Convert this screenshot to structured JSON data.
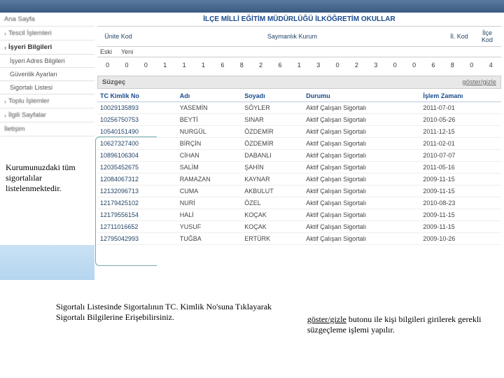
{
  "page_title": "İLÇE MİLLİ EĞİTİM MÜDÜRLÜĞÜ İLKÖĞRETİM OKULLAR",
  "sidebar": {
    "items": [
      {
        "label": "Ana Sayfa"
      },
      {
        "label": "Tescil İşlemleri"
      },
      {
        "label": "İşyeri Bilgileri"
      },
      {
        "label": "İşyeri Adres Bilgileri"
      },
      {
        "label": "Güvenlik Ayarları"
      },
      {
        "label": "Sigortalı Listesi"
      },
      {
        "label": "Toplu İşlemler"
      },
      {
        "label": "İlgili Sayfalar"
      },
      {
        "label": "İletişim"
      }
    ]
  },
  "header_cols": {
    "unite_kod": "Ünite Kod",
    "saymanlik": "Saymanlık Kurum",
    "il_kod": "İl. Kod",
    "ilce_kod": "İlçe Kod",
    "eski": "Eski",
    "yeni": "Yeni"
  },
  "num_row": [
    "0",
    "0",
    "0",
    "1",
    "1",
    "1",
    "6",
    "8",
    "2",
    "6",
    "1",
    "3",
    "0",
    "2",
    "3",
    "0",
    "0",
    "6",
    "8",
    "0",
    "4"
  ],
  "filter": {
    "label": "Süzgeç",
    "toggle": "göster/gizle"
  },
  "list": {
    "cols": {
      "tc": "TC Kimlik No",
      "ad": "Adı",
      "soyad": "Soyadı",
      "durum": "Durumu",
      "zaman": "İşlem Zamanı"
    },
    "rows": [
      {
        "tc": "10029135893",
        "ad": "YASEMİN",
        "soyad": "SÖYLER",
        "durum": "Aktif Çalışan Sigortalı",
        "zaman": "2011-07-01"
      },
      {
        "tc": "10256750753",
        "ad": "BEYTİ",
        "soyad": "SINAR",
        "durum": "Aktif Çalışan Sigortalı",
        "zaman": "2010-05-26"
      },
      {
        "tc": "10540151490",
        "ad": "NURGÜL",
        "soyad": "ÖZDEMİR",
        "durum": "Aktif Çalışan Sigortalı",
        "zaman": "2011-12-15"
      },
      {
        "tc": "10627327400",
        "ad": "BİRÇİN",
        "soyad": "ÖZDEMİR",
        "durum": "Aktif Çalışan Sigortalı",
        "zaman": "2011-02-01"
      },
      {
        "tc": "10896106304",
        "ad": "CİHAN",
        "soyad": "DABANLI",
        "durum": "Aktif Çalışan Sigortalı",
        "zaman": "2010-07-07"
      },
      {
        "tc": "12035452675",
        "ad": "SALİM",
        "soyad": "ŞAHİN",
        "durum": "Aktif Çalışan Sigortalı",
        "zaman": "2011-05-16"
      },
      {
        "tc": "12084067312",
        "ad": "RAMAZAN",
        "soyad": "KAYNAR",
        "durum": "Aktif Çalışan Sigortalı",
        "zaman": "2009-11-15"
      },
      {
        "tc": "12132096713",
        "ad": "CUMA",
        "soyad": "AKBULUT",
        "durum": "Aktif Çalışan Sigortalı",
        "zaman": "2009-11-15"
      },
      {
        "tc": "12179425102",
        "ad": "NURİ",
        "soyad": "ÖZEL",
        "durum": "Aktif Çalışan Sigortalı",
        "zaman": "2010-08-23"
      },
      {
        "tc": "12179556154",
        "ad": "HALİ",
        "soyad": "KOÇAK",
        "durum": "Aktif Çalışan Sigortalı",
        "zaman": "2009-11-15"
      },
      {
        "tc": "12711016652",
        "ad": "YUSUF",
        "soyad": "KOÇAK",
        "durum": "Aktif Çalışan Sigortalı",
        "zaman": "2009-11-15"
      },
      {
        "tc": "12795042993",
        "ad": "TUĞBA",
        "soyad": "ERTÜRK",
        "durum": "Aktif Çalışan Sigortalı",
        "zaman": "2009-10-26"
      }
    ]
  },
  "callouts": {
    "c1": "Kurumunuzdaki tüm sigortalılar listelenmektedir.",
    "c2": "Sigortalı Listesinde Sigortalının TC. Kimlik No'suna Tıklayarak Sigortalı Bilgilerine Erişebilirsiniz.",
    "c3_ul": "göster/gizle",
    "c3_rest": " butonu ile kişi bilgileri girilerek gerekli süzgeçleme işlemi yapılır."
  },
  "colors": {
    "header_text": "#1a4b8c",
    "border": "#cccccc",
    "row": "#eeeeee"
  }
}
